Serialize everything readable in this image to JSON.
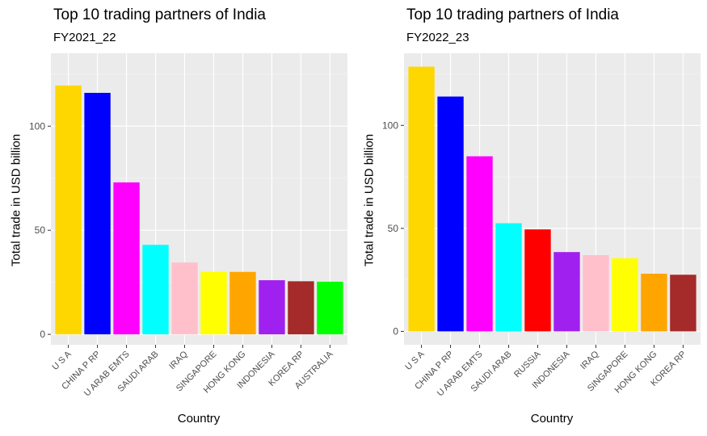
{
  "chart_data": [
    {
      "type": "bar",
      "title": "Top 10 trading partners of India",
      "subtitle": "FY2021_22",
      "xlabel": "Country",
      "ylabel": "Total trade in USD billion",
      "ylim": [
        -5,
        135
      ],
      "yticks": [
        0,
        50,
        100
      ],
      "grid": true,
      "categories": [
        "U S A",
        "CHINA P RP",
        "U ARAB EMTS",
        "SAUDI ARAB",
        "IRAQ",
        "SINGAPORE",
        "HONG KONG",
        "INDONESIA",
        "KOREA RP",
        "AUSTRALIA"
      ],
      "values": [
        119.5,
        116,
        73,
        43,
        34.5,
        30,
        30,
        26,
        25.5,
        25.3
      ],
      "colors": [
        "#FFD700",
        "#0000FF",
        "#FF00FF",
        "#00FFFF",
        "#FFC0CB",
        "#FFFF00",
        "#FFA500",
        "#A020F0",
        "#A52A2A",
        "#00FF00"
      ]
    },
    {
      "type": "bar",
      "title": "Top 10 trading partners of India",
      "subtitle": "FY2022_23",
      "xlabel": "Country",
      "ylabel": "Total trade in USD billion",
      "ylim": [
        -6.5,
        135
      ],
      "yticks": [
        0,
        50,
        100
      ],
      "grid": true,
      "categories": [
        "U S A",
        "CHINA P RP",
        "U ARAB EMTS",
        "SAUDI ARAB",
        "RUSSIA",
        "INDONESIA",
        "IRAQ",
        "SINGAPORE",
        "HONG KONG",
        "KOREA RP"
      ],
      "values": [
        128.5,
        114,
        85,
        52.5,
        49.5,
        38.5,
        37,
        35.5,
        28,
        27.5
      ],
      "colors": [
        "#FFD700",
        "#0000FF",
        "#FF00FF",
        "#00FFFF",
        "#FF0000",
        "#A020F0",
        "#FFC0CB",
        "#FFFF00",
        "#FFA500",
        "#A52A2A"
      ]
    }
  ]
}
